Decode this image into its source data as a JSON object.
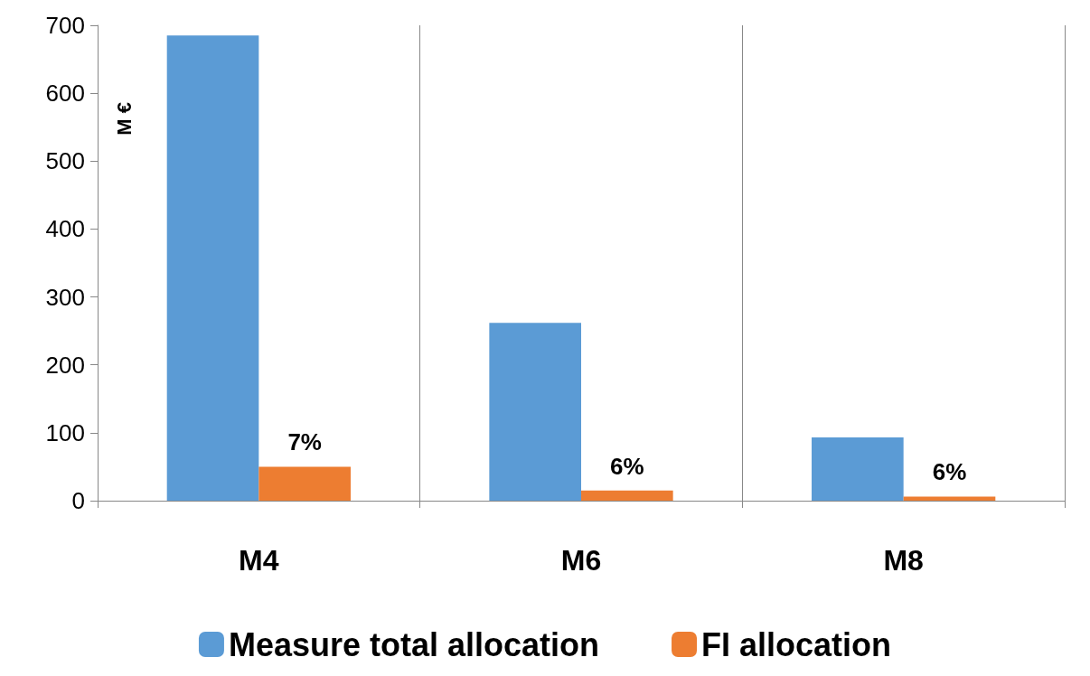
{
  "chart_data": {
    "type": "bar",
    "ylabel": "M €",
    "categories": [
      "M4",
      "M6",
      "M8"
    ],
    "series": [
      {
        "name": "Measure total allocation",
        "color": "#5b9bd5",
        "values": [
          685,
          262,
          93
        ]
      },
      {
        "name": "FI allocation",
        "color": "#ed7d31",
        "values": [
          50,
          15,
          6
        ]
      }
    ],
    "annotations": [
      {
        "text": "7%",
        "x": "M4",
        "y": 50
      },
      {
        "text": "6%",
        "x": "M6",
        "y": 15
      },
      {
        "text": "6%",
        "x": "M8",
        "y": 6
      }
    ],
    "ylim": [
      0,
      700
    ],
    "yticks": [
      0,
      100,
      200,
      300,
      400,
      500,
      600,
      700
    ],
    "grid": "x",
    "legend": "bottom"
  }
}
